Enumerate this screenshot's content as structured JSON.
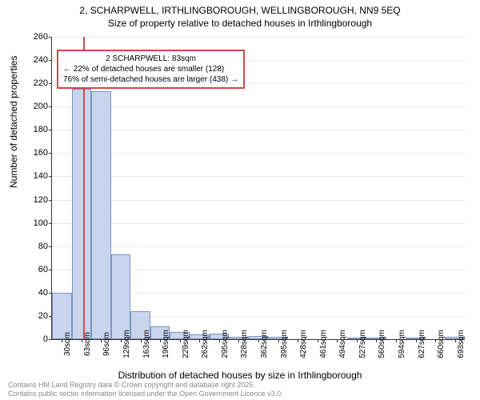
{
  "title": {
    "line1": "2, SCHARPWELL, IRTHLINGBOROUGH, WELLINGBOROUGH, NN9 5EQ",
    "line2": "Size of property relative to detached houses in Irthlingborough"
  },
  "ylabel": "Number of detached properties",
  "xlabel": "Distribution of detached houses by size in Irthlingborough",
  "chart": {
    "type": "histogram",
    "ylim": [
      0,
      260
    ],
    "yticks": [
      0,
      20,
      40,
      60,
      80,
      100,
      120,
      140,
      160,
      180,
      200,
      220,
      240,
      260
    ],
    "xticks": [
      "30sqm",
      "63sqm",
      "96sqm",
      "129sqm",
      "163sqm",
      "196sqm",
      "229sqm",
      "262sqm",
      "295sqm",
      "328sqm",
      "362sqm",
      "395sqm",
      "428sqm",
      "461sqm",
      "494sqm",
      "527sqm",
      "560sqm",
      "594sqm",
      "627sqm",
      "660sqm",
      "693sqm"
    ],
    "bar_fill": "#c9d5ed",
    "bar_stroke": "#7a93c3",
    "grid_color": "#e8e8e8",
    "background_color": "#ffffff",
    "values": [
      40,
      215,
      213,
      73,
      24,
      11,
      6,
      4,
      5,
      2,
      3,
      2,
      0,
      0,
      0,
      1,
      1,
      0,
      1,
      0,
      2
    ],
    "marker": {
      "position_index": 1.6,
      "color": "#d04a4a"
    }
  },
  "annotation": {
    "border_color": "#d04a4a",
    "line1": "2 SCHARPWELL: 83sqm",
    "line2": "← 22% of detached houses are smaller (128)",
    "line3": "76% of semi-detached houses are larger (438) →"
  },
  "footer": {
    "line1": "Contains HM Land Registry data © Crown copyright and database right 2025.",
    "line2": "Contains public sector information licensed under the Open Government Licence v3.0."
  }
}
